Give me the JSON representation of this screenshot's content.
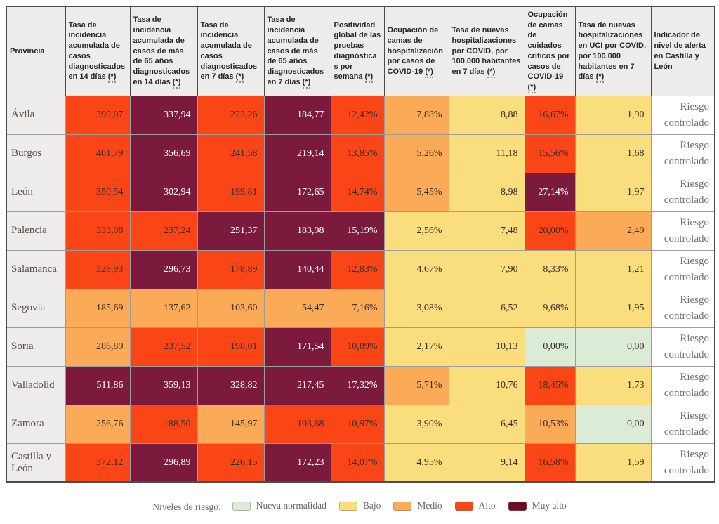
{
  "colors": {
    "nueva": "#dcebd5",
    "bajo": "#fadd7d",
    "medio": "#fbab57",
    "alto": "#fa4616",
    "muyalto": "#7b1a3c",
    "header_bg": "#edeceb",
    "border_dark": "#4b4b4b",
    "border_light": "#9c9c9c",
    "text_header": "#262626",
    "text_province": "#56504b",
    "text_value": "#382e28",
    "text_alert": "#6f6f6f",
    "text_legend": "#6d6560"
  },
  "chart_data": {
    "type": "table",
    "columns": [
      {
        "title": "Provincia",
        "marker": null
      },
      {
        "title": "Tasa de incidencia acumulada de casos diagnosticados en 14 días",
        "marker": "(*)"
      },
      {
        "title": "Tasa de incidencia acumulada de casos de más de 65 años diagnosticados en 14 días",
        "marker": "(*)"
      },
      {
        "title": "Tasa de incidencia acumulada de casos diagnosticados en 7 días",
        "marker": "(*)"
      },
      {
        "title": "Tasa de incidencia acumulada de casos de más de 65 años diagnosticados en 7 días",
        "marker": "(*)"
      },
      {
        "title": "Positividad global de las pruebas diagnósticas por semana",
        "marker": "(*)"
      },
      {
        "title": "Ocupación de camas de hospitalización por casos de COVID-19",
        "marker": "(*)"
      },
      {
        "title": "Tasa de nuevas hospitalizaciones por COVID, por 100.000 habitantes en 7 días",
        "marker": "(*)"
      },
      {
        "title": "Ocupación de camas de cuidados críticos por casos de COVID-19",
        "marker": "(*)"
      },
      {
        "title": "Tasa de nuevas hospitalizaciones en UCI por COVID, por 100.000 habitantes en 7 días",
        "marker": "(*)"
      },
      {
        "title": "Indicador de nivel de alerta en Castilla y León",
        "marker": null
      }
    ],
    "rows": [
      {
        "province": "Ávila",
        "cells": [
          {
            "value": "390,07",
            "level": "alto"
          },
          {
            "value": "337,94",
            "level": "muyalto"
          },
          {
            "value": "223,26",
            "level": "alto"
          },
          {
            "value": "184,77",
            "level": "muyalto"
          },
          {
            "value": "12,42%",
            "level": "alto"
          },
          {
            "value": "7,88%",
            "level": "medio"
          },
          {
            "value": "8,88",
            "level": "bajo"
          },
          {
            "value": "16,67%",
            "level": "alto"
          },
          {
            "value": "1,90",
            "level": "bajo"
          }
        ],
        "alert": "Riesgo controlado"
      },
      {
        "province": "Burgos",
        "cells": [
          {
            "value": "401,79",
            "level": "alto"
          },
          {
            "value": "356,69",
            "level": "muyalto"
          },
          {
            "value": "241,58",
            "level": "alto"
          },
          {
            "value": "219,14",
            "level": "muyalto"
          },
          {
            "value": "13,85%",
            "level": "alto"
          },
          {
            "value": "5,26%",
            "level": "medio"
          },
          {
            "value": "11,18",
            "level": "bajo"
          },
          {
            "value": "15,56%",
            "level": "alto"
          },
          {
            "value": "1,68",
            "level": "bajo"
          }
        ],
        "alert": "Riesgo controlado"
      },
      {
        "province": "León",
        "cells": [
          {
            "value": "350,54",
            "level": "alto"
          },
          {
            "value": "302,94",
            "level": "muyalto"
          },
          {
            "value": "199,81",
            "level": "alto"
          },
          {
            "value": "172,65",
            "level": "muyalto"
          },
          {
            "value": "14,74%",
            "level": "alto"
          },
          {
            "value": "5,45%",
            "level": "medio"
          },
          {
            "value": "8,98",
            "level": "bajo"
          },
          {
            "value": "27,14%",
            "level": "muyalto"
          },
          {
            "value": "1,97",
            "level": "bajo"
          }
        ],
        "alert": "Riesgo controlado"
      },
      {
        "province": "Palencia",
        "cells": [
          {
            "value": "333,08",
            "level": "alto"
          },
          {
            "value": "237,24",
            "level": "alto"
          },
          {
            "value": "251,37",
            "level": "muyalto"
          },
          {
            "value": "183,98",
            "level": "muyalto"
          },
          {
            "value": "15,19%",
            "level": "muyalto"
          },
          {
            "value": "2,56%",
            "level": "bajo"
          },
          {
            "value": "7,48",
            "level": "bajo"
          },
          {
            "value": "20,00%",
            "level": "alto"
          },
          {
            "value": "2,49",
            "level": "medio"
          }
        ],
        "alert": "Riesgo controlado"
      },
      {
        "province": "Salamanca",
        "cells": [
          {
            "value": "328,93",
            "level": "alto"
          },
          {
            "value": "296,73",
            "level": "muyalto"
          },
          {
            "value": "178,89",
            "level": "alto"
          },
          {
            "value": "140,44",
            "level": "muyalto"
          },
          {
            "value": "12,83%",
            "level": "alto"
          },
          {
            "value": "4,67%",
            "level": "bajo"
          },
          {
            "value": "7,90",
            "level": "bajo"
          },
          {
            "value": "8,33%",
            "level": "bajo"
          },
          {
            "value": "1,21",
            "level": "bajo"
          }
        ],
        "alert": "Riesgo controlado"
      },
      {
        "province": "Segovia",
        "cells": [
          {
            "value": "185,69",
            "level": "medio"
          },
          {
            "value": "137,62",
            "level": "medio"
          },
          {
            "value": "103,60",
            "level": "medio"
          },
          {
            "value": "54,47",
            "level": "medio"
          },
          {
            "value": "7,16%",
            "level": "medio"
          },
          {
            "value": "3,08%",
            "level": "bajo"
          },
          {
            "value": "6,52",
            "level": "bajo"
          },
          {
            "value": "9,68%",
            "level": "bajo"
          },
          {
            "value": "1,95",
            "level": "bajo"
          }
        ],
        "alert": "Riesgo controlado"
      },
      {
        "province": "Soria",
        "cells": [
          {
            "value": "286,89",
            "level": "medio"
          },
          {
            "value": "237,52",
            "level": "alto"
          },
          {
            "value": "198,01",
            "level": "alto"
          },
          {
            "value": "171,54",
            "level": "muyalto"
          },
          {
            "value": "10,89%",
            "level": "alto"
          },
          {
            "value": "2,17%",
            "level": "bajo"
          },
          {
            "value": "10,13",
            "level": "bajo"
          },
          {
            "value": "0,00%",
            "level": "nueva"
          },
          {
            "value": "0,00",
            "level": "nueva"
          }
        ],
        "alert": "Riesgo controlado"
      },
      {
        "province": "Valladolid",
        "cells": [
          {
            "value": "511,86",
            "level": "muyalto"
          },
          {
            "value": "359,13",
            "level": "muyalto"
          },
          {
            "value": "328,82",
            "level": "muyalto"
          },
          {
            "value": "217,45",
            "level": "muyalto"
          },
          {
            "value": "17,32%",
            "level": "muyalto"
          },
          {
            "value": "5,71%",
            "level": "medio"
          },
          {
            "value": "10,76",
            "level": "bajo"
          },
          {
            "value": "18,45%",
            "level": "alto"
          },
          {
            "value": "1,73",
            "level": "bajo"
          }
        ],
        "alert": "Riesgo controlado"
      },
      {
        "province": "Zamora",
        "cells": [
          {
            "value": "256,76",
            "level": "medio"
          },
          {
            "value": "188,50",
            "level": "alto"
          },
          {
            "value": "145,97",
            "level": "medio"
          },
          {
            "value": "103,68",
            "level": "alto"
          },
          {
            "value": "10,97%",
            "level": "alto"
          },
          {
            "value": "3,90%",
            "level": "bajo"
          },
          {
            "value": "6,45",
            "level": "bajo"
          },
          {
            "value": "10,53%",
            "level": "medio"
          },
          {
            "value": "0,00",
            "level": "nueva"
          }
        ],
        "alert": "Riesgo controlado"
      },
      {
        "province": "Castilla y León",
        "cells": [
          {
            "value": "372,12",
            "level": "alto"
          },
          {
            "value": "296,89",
            "level": "muyalto"
          },
          {
            "value": "226,15",
            "level": "alto"
          },
          {
            "value": "172,23",
            "level": "muyalto"
          },
          {
            "value": "14,07%",
            "level": "alto"
          },
          {
            "value": "4,95%",
            "level": "bajo"
          },
          {
            "value": "9,14",
            "level": "bajo"
          },
          {
            "value": "16,58%",
            "level": "alto"
          },
          {
            "value": "1,59",
            "level": "bajo"
          }
        ],
        "alert": "Riesgo controlado"
      }
    ],
    "legend": {
      "label": "Niveles de riesgo:",
      "items": [
        {
          "label": "Nueva normalidad",
          "level": "nueva",
          "color": "#dcebd5"
        },
        {
          "label": "Bajo",
          "level": "bajo",
          "color": "#fadd7d"
        },
        {
          "label": "Medio",
          "level": "medio",
          "color": "#fbab57"
        },
        {
          "label": "Alto",
          "level": "alto",
          "color": "#fa4616"
        },
        {
          "label": "Muy alto",
          "level": "muyalto",
          "color": "#6d0e23"
        }
      ]
    }
  }
}
